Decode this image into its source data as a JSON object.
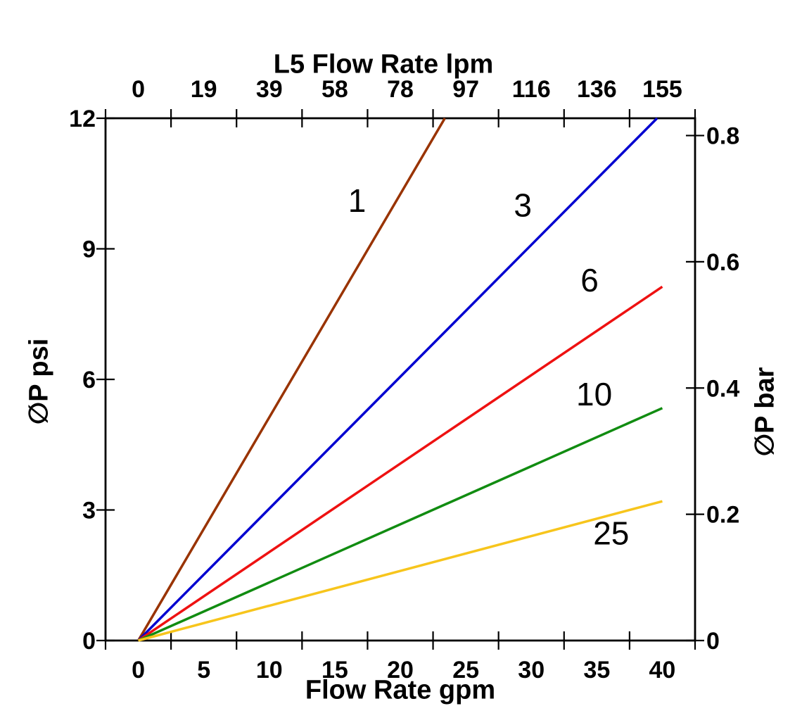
{
  "chart_data": {
    "type": "line",
    "top_axis": {
      "label": "L5 Flow Rate lpm",
      "unit": "lpm",
      "tick_labels": [
        "0",
        "19",
        "39",
        "58",
        "78",
        "97",
        "116",
        "136",
        "155"
      ],
      "tick_label_positions_gpm": [
        0,
        5,
        10,
        15,
        20,
        25,
        30,
        35,
        40
      ]
    },
    "bottom_axis": {
      "label": "Flow Rate gpm",
      "unit": "gpm",
      "tick_labels": [
        "0",
        "5",
        "10",
        "15",
        "20",
        "25",
        "30",
        "35",
        "40"
      ],
      "tick_label_positions_gpm": [
        0,
        5,
        10,
        15,
        20,
        25,
        30,
        35,
        40
      ],
      "tick_mark_positions_gpm": [
        -2.5,
        2.5,
        7.5,
        12.5,
        17.5,
        22.5,
        27.5,
        32.5,
        37.5,
        42.5
      ],
      "range_gpm": [
        -2.5,
        42.5
      ]
    },
    "left_axis": {
      "label": "∅P psi",
      "unit": "psi",
      "tick_labels": [
        "0",
        "3",
        "6",
        "9",
        "12"
      ],
      "tick_values_psi": [
        0,
        3,
        6,
        9,
        12
      ],
      "range_psi": [
        0,
        12
      ]
    },
    "right_axis": {
      "label": "∅P bar",
      "unit": "bar",
      "tick_labels": [
        "0",
        "0.2",
        "0.4",
        "0.6",
        "0.8"
      ],
      "tick_values_bar": [
        0,
        0.2,
        0.4,
        0.6,
        0.8
      ],
      "psi_per_bar": 14.5038
    },
    "series": [
      {
        "name": "1",
        "color": "#993300",
        "points_gpm_psi": [
          [
            0,
            0
          ],
          [
            23.4,
            12
          ]
        ],
        "slope_psi_per_gpm": 0.513,
        "label_pos_gpm_psi": [
          16.7,
          10.11
        ]
      },
      {
        "name": "3",
        "color": "#0000d0",
        "points_gpm_psi": [
          [
            0,
            0
          ],
          [
            39.6,
            12
          ]
        ],
        "slope_psi_per_gpm": 0.303,
        "label_pos_gpm_psi": [
          29.35,
          10.0
        ]
      },
      {
        "name": "6",
        "color": "#ee1111",
        "points_gpm_psi": [
          [
            0,
            0
          ],
          [
            40.0,
            8.13
          ]
        ],
        "slope_psi_per_gpm": 0.203,
        "label_pos_gpm_psi": [
          34.45,
          8.28
        ]
      },
      {
        "name": "10",
        "color": "#118c11",
        "points_gpm_psi": [
          [
            0,
            0
          ],
          [
            40.0,
            5.34
          ]
        ],
        "slope_psi_per_gpm": 0.134,
        "label_pos_gpm_psi": [
          34.8,
          5.66
        ]
      },
      {
        "name": "25",
        "color": "#f7c51c",
        "points_gpm_psi": [
          [
            0,
            0
          ],
          [
            40.0,
            3.2
          ]
        ],
        "slope_psi_per_gpm": 0.08,
        "label_pos_gpm_psi": [
          36.1,
          2.47
        ]
      }
    ],
    "grid": false,
    "legend": "inline curve labels",
    "axis_color": "#000000",
    "background_color": "#ffffff"
  }
}
